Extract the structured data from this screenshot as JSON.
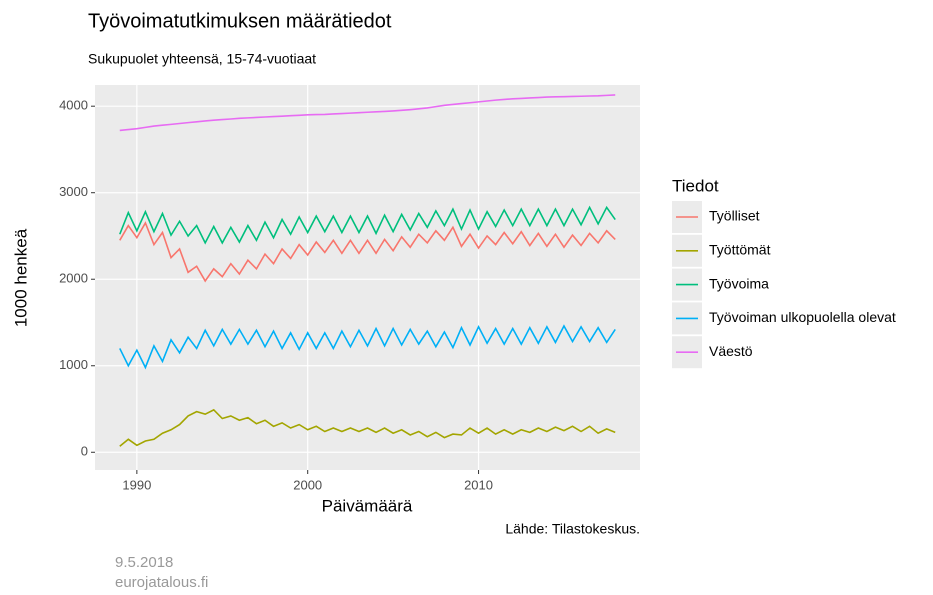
{
  "chart_data": {
    "type": "line",
    "title": "Työvoimatutkimuksen määrätiedot",
    "subtitle": "Sukupuolet yhteensä, 15-74-vuotiaat",
    "x_label": "Päivämäärä",
    "y_label": "1000 henkeä",
    "legend_title": "Tiedot",
    "caption": "Lähde: Tilastokeskus.",
    "footer": [
      "9.5.2018",
      "eurojatalous.fi"
    ],
    "legend_position": "right",
    "grid": true,
    "xlim": [
      1987.55,
      2019.45
    ],
    "xticks": [
      1990,
      2000,
      2010
    ],
    "ylim": [
      -205,
      4245
    ],
    "yticks": [
      0,
      1000,
      2000,
      3000,
      4000
    ],
    "x": [
      1989,
      1989.5,
      1990,
      1990.5,
      1991,
      1991.5,
      1992,
      1992.5,
      1993,
      1993.5,
      1994,
      1994.5,
      1995,
      1995.5,
      1996,
      1996.5,
      1997,
      1997.5,
      1998,
      1998.5,
      1999,
      1999.5,
      2000,
      2000.5,
      2001,
      2001.5,
      2002,
      2002.5,
      2003,
      2003.5,
      2004,
      2004.5,
      2005,
      2005.5,
      2006,
      2006.5,
      2007,
      2007.5,
      2008,
      2008.5,
      2009,
      2009.5,
      2010,
      2010.5,
      2011,
      2011.5,
      2012,
      2012.5,
      2013,
      2013.5,
      2014,
      2014.5,
      2015,
      2015.5,
      2016,
      2016.5,
      2017,
      2017.5,
      2018
    ],
    "series": [
      {
        "name": "Työlliset",
        "color": "#F8766D",
        "values": [
          2450,
          2620,
          2480,
          2650,
          2400,
          2540,
          2250,
          2350,
          2080,
          2150,
          1980,
          2120,
          2030,
          2180,
          2060,
          2220,
          2120,
          2290,
          2180,
          2350,
          2240,
          2400,
          2280,
          2430,
          2310,
          2450,
          2300,
          2450,
          2300,
          2450,
          2300,
          2460,
          2330,
          2490,
          2370,
          2520,
          2420,
          2560,
          2450,
          2600,
          2380,
          2520,
          2360,
          2500,
          2400,
          2540,
          2410,
          2550,
          2390,
          2530,
          2380,
          2520,
          2370,
          2510,
          2390,
          2530,
          2420,
          2560,
          2460
        ]
      },
      {
        "name": "Työttömät",
        "color": "#A3A500",
        "values": [
          70,
          150,
          80,
          130,
          150,
          220,
          260,
          320,
          420,
          470,
          440,
          490,
          390,
          420,
          370,
          400,
          330,
          370,
          300,
          340,
          280,
          320,
          260,
          300,
          240,
          280,
          240,
          280,
          240,
          280,
          230,
          280,
          220,
          260,
          200,
          240,
          180,
          230,
          170,
          210,
          200,
          280,
          220,
          280,
          210,
          260,
          210,
          260,
          230,
          280,
          240,
          290,
          250,
          300,
          240,
          300,
          220,
          270,
          230
        ]
      },
      {
        "name": "Työvoima",
        "color": "#00BF7D",
        "values": [
          2520,
          2770,
          2560,
          2780,
          2550,
          2760,
          2510,
          2670,
          2500,
          2620,
          2420,
          2610,
          2420,
          2600,
          2430,
          2620,
          2450,
          2660,
          2480,
          2690,
          2520,
          2720,
          2540,
          2730,
          2550,
          2730,
          2540,
          2730,
          2540,
          2730,
          2530,
          2740,
          2550,
          2750,
          2570,
          2760,
          2600,
          2790,
          2620,
          2810,
          2580,
          2800,
          2580,
          2780,
          2610,
          2800,
          2620,
          2810,
          2620,
          2810,
          2620,
          2810,
          2620,
          2810,
          2630,
          2830,
          2640,
          2830,
          2690
        ]
      },
      {
        "name": "Työvoiman ulkopuolella olevat",
        "color": "#00B0F6",
        "values": [
          1200,
          1000,
          1180,
          980,
          1230,
          1050,
          1300,
          1150,
          1330,
          1200,
          1410,
          1230,
          1420,
          1250,
          1420,
          1250,
          1410,
          1220,
          1400,
          1200,
          1380,
          1190,
          1380,
          1200,
          1380,
          1200,
          1400,
          1220,
          1410,
          1230,
          1430,
          1230,
          1430,
          1240,
          1420,
          1250,
          1400,
          1220,
          1390,
          1210,
          1440,
          1240,
          1450,
          1260,
          1430,
          1250,
          1430,
          1250,
          1440,
          1260,
          1450,
          1270,
          1460,
          1280,
          1450,
          1280,
          1440,
          1270,
          1420
        ]
      },
      {
        "name": "Väestö",
        "color": "#E76BF3",
        "values": [
          3720,
          3730,
          3740,
          3755,
          3770,
          3780,
          3790,
          3800,
          3810,
          3820,
          3830,
          3838,
          3845,
          3852,
          3860,
          3865,
          3870,
          3875,
          3880,
          3885,
          3890,
          3895,
          3900,
          3903,
          3905,
          3910,
          3915,
          3920,
          3925,
          3930,
          3935,
          3940,
          3945,
          3952,
          3960,
          3970,
          3980,
          3995,
          4010,
          4020,
          4030,
          4040,
          4050,
          4060,
          4070,
          4078,
          4085,
          4090,
          4095,
          4100,
          4105,
          4108,
          4110,
          4113,
          4115,
          4118,
          4120,
          4125,
          4130
        ]
      }
    ]
  }
}
